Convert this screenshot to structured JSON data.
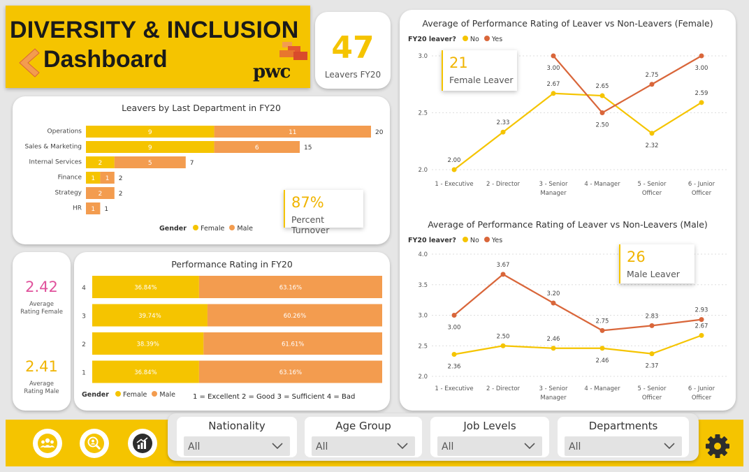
{
  "header": {
    "title_line1": "DIVERSITY & INCLUSION",
    "title_line2": "Dashboard",
    "brand": "pwc"
  },
  "kpi_leavers": {
    "value": "47",
    "label": "Leavers FY20"
  },
  "dept_chart": {
    "title": "Leavers by Last Department in FY20",
    "legend_title": "Gender",
    "legend": [
      "Female",
      "Male"
    ],
    "turnover": {
      "value": "87%",
      "label": "Percent Turnover"
    }
  },
  "avg_rating": {
    "female": {
      "value": "2.42",
      "label_line1": "Average",
      "label_line2": "Rating Female"
    },
    "male": {
      "value": "2.41",
      "label_line1": "Average",
      "label_line2": "Rating Male"
    }
  },
  "perf_chart": {
    "title": "Performance Rating in FY20",
    "legend_title": "Gender",
    "legend": [
      "Female",
      "Male"
    ],
    "scale_note": "1 = Excellent 2 = Good 3 = Sufficient 4 = Bad"
  },
  "female_chart": {
    "title": "Average of Performance Rating of Leaver vs Non-Leavers (Female)",
    "legend_title": "FY20 leaver?",
    "legend": [
      "No",
      "Yes"
    ],
    "kpi": {
      "value": "21",
      "label": "Female Leaver"
    }
  },
  "male_chart": {
    "title": "Average of Performance Rating of Leaver vs Non-Leavers (Male)",
    "legend_title": "FY20 leaver?",
    "legend": [
      "No",
      "Yes"
    ],
    "kpi": {
      "value": "26",
      "label": "Male Leaver"
    }
  },
  "filters": [
    {
      "label": "Nationality",
      "value": "All"
    },
    {
      "label": "Age Group",
      "value": "All"
    },
    {
      "label": "Job Levels",
      "value": "All"
    },
    {
      "label": "Departments",
      "value": "All"
    }
  ],
  "nav_icons": [
    "people-icon",
    "search-person-icon",
    "bar-chart-icon",
    "gear-icon"
  ],
  "colors": {
    "yellow": "#f5c400",
    "line_yellow": "#f5c400",
    "orange": "#f39c4f",
    "line_orange": "#d9663a",
    "pink": "#e0529c"
  },
  "chart_data": [
    {
      "type": "bar",
      "orientation": "horizontal-stacked",
      "title": "Leavers by Last Department in FY20",
      "categories": [
        "Operations",
        "Sales & Marketing",
        "Internal Services",
        "Finance",
        "Strategy",
        "HR"
      ],
      "series": [
        {
          "name": "Female",
          "values": [
            9,
            9,
            2,
            1,
            0,
            0
          ]
        },
        {
          "name": "Male",
          "values": [
            11,
            6,
            5,
            1,
            2,
            1
          ]
        }
      ],
      "totals": [
        20,
        15,
        7,
        2,
        2,
        1
      ]
    },
    {
      "type": "bar",
      "orientation": "horizontal-100pct-stacked",
      "title": "Performance Rating in FY20",
      "categories": [
        "4",
        "3",
        "2",
        "1"
      ],
      "series": [
        {
          "name": "Female",
          "values": [
            36.84,
            39.74,
            38.39,
            36.84
          ],
          "labels": [
            "36.84%",
            "39.74%",
            "38.39%",
            "36.84%"
          ]
        },
        {
          "name": "Male",
          "values": [
            63.16,
            60.26,
            61.61,
            63.16
          ],
          "labels": [
            "63.16%",
            "60.26%",
            "61.61%",
            "63.16%"
          ]
        }
      ]
    },
    {
      "type": "line",
      "title": "Average of Performance Rating of Leaver vs Non-Leavers (Female)",
      "categories": [
        "1 - Executive",
        "2 - Director",
        "3 - Senior Manager",
        "4 - Manager",
        "5 - Senior Officer",
        "6 - Junior Officer"
      ],
      "series": [
        {
          "name": "No",
          "values": [
            2.0,
            2.33,
            2.67,
            2.65,
            2.32,
            2.59
          ],
          "labels": [
            "2.00",
            "2.33",
            "2.67",
            "2.65",
            "2.32",
            "2.59"
          ]
        },
        {
          "name": "Yes",
          "values": [
            null,
            null,
            3.0,
            2.5,
            2.75,
            3.0
          ],
          "labels": [
            null,
            null,
            "3.00",
            "2.50",
            "2.75",
            "3.00"
          ]
        }
      ],
      "yticks": [
        "2.0",
        "2.5",
        "3.0"
      ],
      "ylim": [
        2.0,
        3.0
      ]
    },
    {
      "type": "line",
      "title": "Average of Performance Rating of Leaver vs Non-Leavers (Male)",
      "categories": [
        "1 - Executive",
        "2 - Director",
        "3 - Senior Manager",
        "4 - Manager",
        "5 - Senior Officer",
        "6 - Junior Officer"
      ],
      "series": [
        {
          "name": "No",
          "values": [
            2.36,
            2.5,
            2.46,
            2.46,
            2.37,
            2.67
          ],
          "labels": [
            "2.36",
            "2.50",
            "2.46",
            "2.46",
            "2.37",
            "2.67"
          ]
        },
        {
          "name": "Yes",
          "values": [
            3.0,
            3.67,
            3.2,
            2.75,
            2.83,
            2.93
          ],
          "labels": [
            "3.00",
            "3.67",
            "3.20",
            "2.75",
            "2.83",
            "2.93"
          ]
        }
      ],
      "yticks": [
        "2.0",
        "2.5",
        "3.0",
        "3.5",
        "4.0"
      ],
      "ylim": [
        2.0,
        4.0
      ]
    }
  ]
}
